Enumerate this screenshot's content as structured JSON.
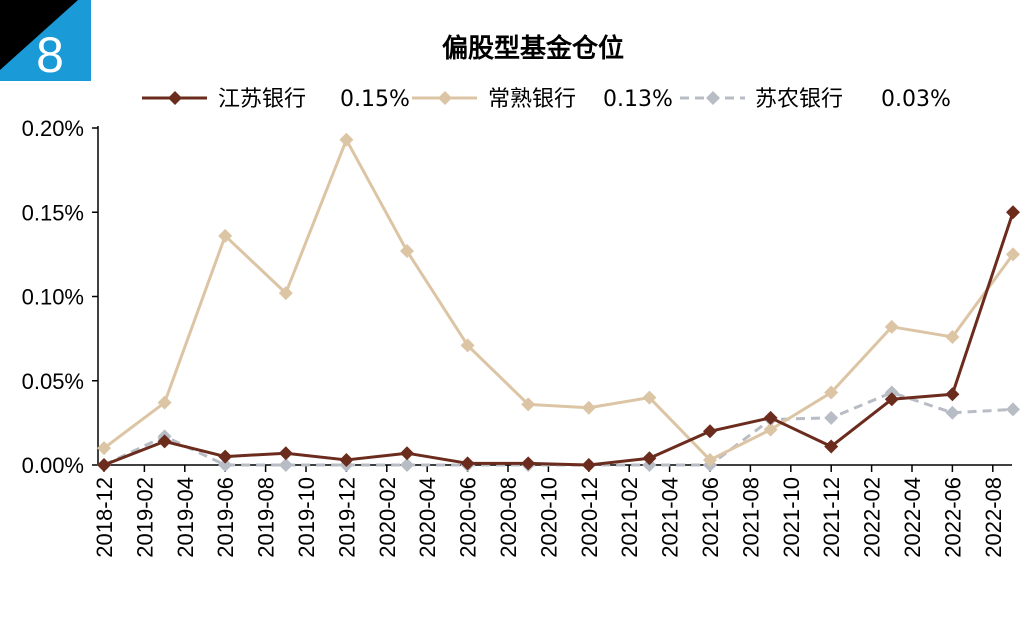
{
  "badge": {
    "number": "8",
    "color": "#1a9ad6"
  },
  "chart_data": {
    "type": "line",
    "title": "偏股型基金仓位",
    "xlabel": "",
    "ylabel": "",
    "ylim": [
      0,
      0.002
    ],
    "yticks": [
      "0.00%",
      "0.05%",
      "0.10%",
      "0.15%",
      "0.20%"
    ],
    "ytick_values": [
      0,
      0.0005,
      0.001,
      0.0015,
      0.002
    ],
    "x_tick_labels": [
      "2018-12",
      "2019-02",
      "2019-04",
      "2019-06",
      "2019-08",
      "2019-10",
      "2019-12",
      "2020-02",
      "2020-04",
      "2020-06",
      "2020-08",
      "2020-10",
      "2020-12",
      "2021-02",
      "2021-04",
      "2021-06",
      "2021-08",
      "2021-10",
      "2021-12",
      "2022-02",
      "2022-04",
      "2022-06",
      "2022-08"
    ],
    "x": [
      "2018-12",
      "2019-03",
      "2019-06",
      "2019-09",
      "2019-12",
      "2020-03",
      "2020-06",
      "2020-09",
      "2020-12",
      "2021-03",
      "2021-06",
      "2021-09",
      "2021-12",
      "2022-03",
      "2022-06",
      "2022-09"
    ],
    "legend_position": "top",
    "series": [
      {
        "name": "江苏银行",
        "legend_value": "0.15%",
        "color": "#6b2c1e",
        "dashed": false,
        "values": [
          0.0,
          0.00014,
          5e-05,
          7e-05,
          3e-05,
          7e-05,
          1e-05,
          1e-05,
          0.0,
          4e-05,
          0.0002,
          0.00028,
          0.00011,
          0.00039,
          0.00042,
          0.0015
        ]
      },
      {
        "name": "常熟银行",
        "legend_value": "0.13%",
        "color": "#dcc5a4",
        "dashed": false,
        "values": [
          0.0001,
          0.00037,
          0.00136,
          0.00102,
          0.00193,
          0.00127,
          0.00071,
          0.00036,
          0.00034,
          0.0004,
          3e-05,
          0.00021,
          0.00043,
          0.00082,
          0.00076,
          0.00125
        ]
      },
      {
        "name": "苏农银行",
        "legend_value": "0.03%",
        "color": "#b8bcc4",
        "dashed": true,
        "values": [
          0.0,
          0.00017,
          0.0,
          0.0,
          0.0,
          0.0,
          0.0,
          0.0,
          0.0,
          0.0,
          0.0,
          0.00027,
          0.00028,
          0.00043,
          0.00031,
          0.00033
        ]
      }
    ]
  }
}
